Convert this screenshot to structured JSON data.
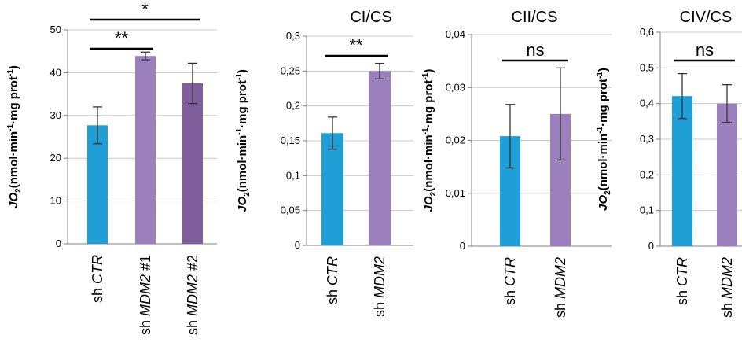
{
  "colors": {
    "ctr": "#1f9fd6",
    "mdm2": "#9b80bd",
    "mdm2_2": "#7e5f9b",
    "grid": "#c8c8c8",
    "axis": "#808080"
  },
  "y_label": {
    "prefix": "JO",
    "sub": "2",
    "unit_open": "(nmol·min",
    "sup1": "-1",
    "unit_mid": "·mg prot",
    "sup2": "-1",
    "unit_close": ")"
  },
  "chart_data": [
    {
      "type": "bar",
      "title": "",
      "ylim": [
        0,
        50
      ],
      "yticks": [
        "0",
        "10",
        "20",
        "30",
        "40",
        "50"
      ],
      "categories": [
        {
          "prefix": "sh ",
          "gene": "CTR",
          "suffix": ""
        },
        {
          "prefix": "sh ",
          "gene": "MDM2",
          "suffix": " #1"
        },
        {
          "prefix": "sh ",
          "gene": "MDM2",
          "suffix": " #2"
        }
      ],
      "values": [
        27.7,
        43.9,
        37.5
      ],
      "errors": [
        4.3,
        0.9,
        4.7
      ],
      "bar_colors": [
        "ctr",
        "mdm2",
        "mdm2_2"
      ],
      "significance": [
        {
          "from": 0,
          "to": 1,
          "label": "**"
        },
        {
          "from": 0,
          "to": 2,
          "label": "*"
        }
      ]
    },
    {
      "type": "bar",
      "title": "CI/CS",
      "ylim": [
        0,
        0.3
      ],
      "yticks": [
        "0",
        "0,05",
        "0,1",
        "0,15",
        "0,2",
        "0,25",
        "0,3"
      ],
      "categories": [
        {
          "prefix": "sh ",
          "gene": "CTR",
          "suffix": ""
        },
        {
          "prefix": "sh ",
          "gene": "MDM2",
          "suffix": ""
        }
      ],
      "values": [
        0.161,
        0.25
      ],
      "errors": [
        0.023,
        0.011
      ],
      "bar_colors": [
        "ctr",
        "mdm2"
      ],
      "significance": [
        {
          "from": 0,
          "to": 1,
          "label": "**"
        }
      ]
    },
    {
      "type": "bar",
      "title": "CII/CS",
      "ylim": [
        0,
        0.04
      ],
      "yticks": [
        "0",
        "0,01",
        "0,02",
        "0,03",
        "0,04"
      ],
      "categories": [
        {
          "prefix": "sh ",
          "gene": "CTR",
          "suffix": ""
        },
        {
          "prefix": "sh ",
          "gene": "MDM2",
          "suffix": ""
        }
      ],
      "values": [
        0.0208,
        0.025
      ],
      "errors": [
        0.006,
        0.0087
      ],
      "bar_colors": [
        "ctr",
        "mdm2"
      ],
      "significance": [
        {
          "from": 0,
          "to": 1,
          "label": "ns"
        }
      ]
    },
    {
      "type": "bar",
      "title": "CIV/CS",
      "ylim": [
        0,
        0.6
      ],
      "yticks": [
        "0",
        "0,1",
        "0,2",
        "0,3",
        "0,4",
        "0,5",
        "0,6"
      ],
      "categories": [
        {
          "prefix": "sh ",
          "gene": "CTR",
          "suffix": ""
        },
        {
          "prefix": "sh ",
          "gene": "MDM2",
          "suffix": ""
        }
      ],
      "values": [
        0.421,
        0.4
      ],
      "errors": [
        0.063,
        0.053
      ],
      "bar_colors": [
        "ctr",
        "mdm2"
      ],
      "significance": [
        {
          "from": 0,
          "to": 1,
          "label": "ns"
        }
      ]
    }
  ]
}
